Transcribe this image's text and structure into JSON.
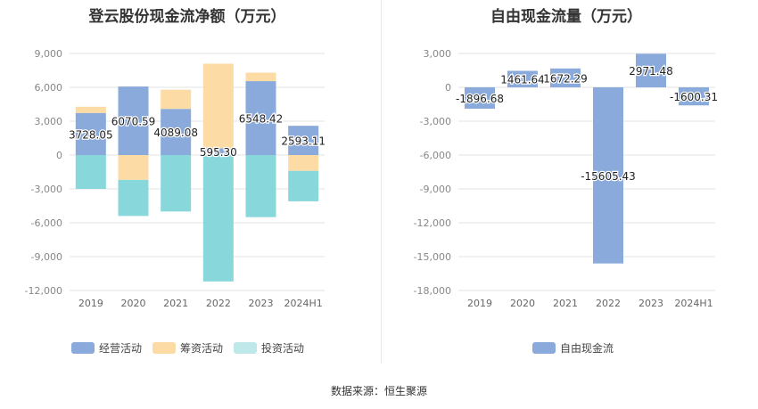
{
  "source_text": "数据来源：恒生聚源",
  "chart_data": [
    {
      "type": "bar",
      "stacked": true,
      "title": "登云股份现金流净额（万元）",
      "categories": [
        "2019",
        "2020",
        "2021",
        "2022",
        "2023",
        "2024H1"
      ],
      "ylim": [
        -12000,
        9000
      ],
      "yticks": [
        9000,
        6000,
        3000,
        0,
        -3000,
        -6000,
        -9000,
        -12000
      ],
      "ytick_labels": [
        "9,000",
        "6,000",
        "3,000",
        "0",
        "-3,000",
        "-6,000",
        "-9,000",
        "-12,000"
      ],
      "grid": true,
      "legend_position": "bottom",
      "series": [
        {
          "name": "经营活动",
          "color": "#8aaadb",
          "values": [
            3728.05,
            6070.59,
            4089.08,
            595.3,
            6548.42,
            2593.11
          ],
          "labels": [
            "3728.05",
            "6070.59",
            "4089.08",
            "595.30",
            "6548.42",
            "2593.11"
          ]
        },
        {
          "name": "筹资活动",
          "color": "#fddba4",
          "values": [
            550,
            -2200,
            1700,
            7500,
            750,
            -1400
          ]
        },
        {
          "name": "投资活动",
          "color": "#88d8db",
          "values": [
            -3000,
            -3200,
            -5000,
            -11200,
            -5500,
            -2700
          ]
        }
      ]
    },
    {
      "type": "bar",
      "title": "自由现金流量（万元）",
      "categories": [
        "2019",
        "2020",
        "2021",
        "2022",
        "2023",
        "2024H1"
      ],
      "ylim": [
        -18000,
        3000
      ],
      "yticks": [
        3000,
        0,
        -3000,
        -6000,
        -9000,
        -12000,
        -15000,
        -18000
      ],
      "ytick_labels": [
        "3,000",
        "0",
        "-3,000",
        "-6,000",
        "-9,000",
        "-12,000",
        "-15,000",
        "-18,000"
      ],
      "grid": true,
      "legend_position": "bottom",
      "series": [
        {
          "name": "自由现金流",
          "color": "#8aaadb",
          "values": [
            -1896.68,
            1461.64,
            1672.29,
            -15605.43,
            2971.48,
            -1600.31
          ],
          "labels": [
            "-1896.68",
            "1461.64",
            "1672.29",
            "-15605.43",
            "2971.48",
            "-1600.31"
          ]
        }
      ]
    }
  ]
}
